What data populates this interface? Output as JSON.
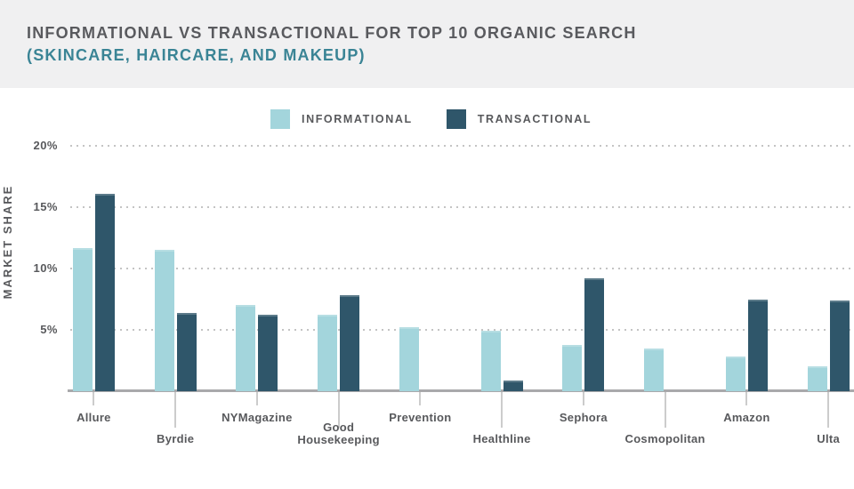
{
  "header": {
    "title": "INFORMATIONAL VS TRANSACTIONAL FOR TOP 10 ORGANIC SEARCH",
    "subtitle": "(SKINCARE, HAIRCARE, AND MAKEUP)"
  },
  "colors": {
    "informational": "#a3d5dc",
    "transactional": "#2f566a",
    "header_background": "#f0f0f1",
    "title_text": "#595a5e",
    "subtitle_text": "#3a8495",
    "axis_text": "#58595c",
    "axis_line": "#a9a9ab",
    "gridline": "#c4c4c4"
  },
  "chart_data": {
    "type": "bar",
    "title": "INFORMATIONAL VS TRANSACTIONAL FOR TOP 10 ORGANIC SEARCH (SKINCARE, HAIRCARE, AND MAKEUP)",
    "xlabel": "",
    "ylabel": "MARKET SHARE",
    "ylim": [
      0,
      20
    ],
    "yticks": [
      5,
      10,
      15,
      20
    ],
    "ytick_suffix": "%",
    "grid": "horizontal-dotted",
    "legend_position": "top-center",
    "categories": [
      "Allure",
      "Byrdie",
      "NYMagazine",
      "Good Housekeeping",
      "Prevention",
      "Healthline",
      "Sephora",
      "Cosmopolitan",
      "Amazon",
      "Ulta"
    ],
    "series": [
      {
        "name": "INFORMATIONAL",
        "color": "#a3d5dc",
        "values": [
          11.7,
          11.5,
          7.0,
          6.2,
          5.2,
          4.9,
          3.8,
          3.5,
          2.8,
          2.0
        ]
      },
      {
        "name": "TRANSACTIONAL",
        "color": "#2f566a",
        "values": [
          16.1,
          6.4,
          6.2,
          7.8,
          null,
          0.9,
          9.2,
          null,
          7.5,
          7.4
        ]
      }
    ]
  }
}
